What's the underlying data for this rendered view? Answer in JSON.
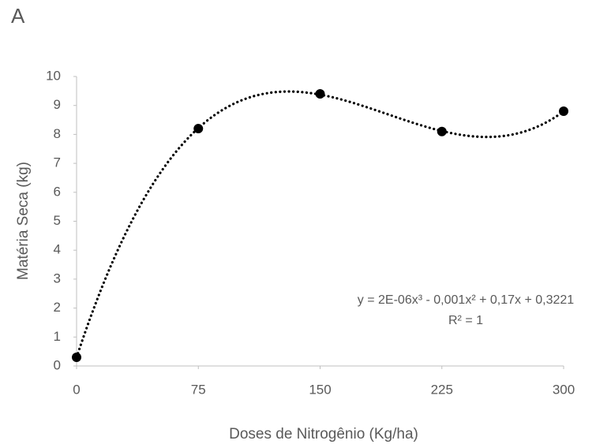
{
  "chart_data": {
    "type": "scatter",
    "panel_label": "A",
    "x_label": "Doses de Nitrogênio (Kg/ha)",
    "y_label": "Matéria Seca (kg)",
    "x": [
      0,
      75,
      150,
      225,
      300
    ],
    "series": [
      {
        "color": "#000000",
        "values": [
          0.3,
          8.2,
          9.4,
          8.1,
          8.8
        ]
      }
    ],
    "trendline": "polynomial",
    "annotations": [
      "y = 2E-06x³ - 0,001x² + 0,17x + 0,3221",
      "R² = 1"
    ],
    "xlim": [
      0,
      300
    ],
    "xticks": [
      0,
      75,
      150,
      225,
      300
    ],
    "ylim": [
      0,
      10
    ],
    "yticks": [
      0,
      1,
      2,
      3,
      4,
      5,
      6,
      7,
      8,
      9,
      10
    ]
  }
}
